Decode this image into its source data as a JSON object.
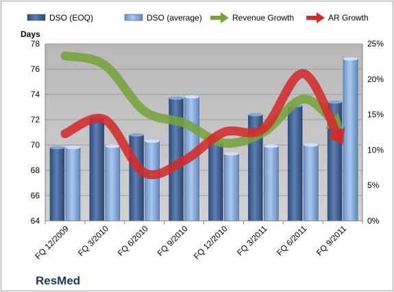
{
  "chart_data": {
    "type": "bar",
    "categories": [
      "FQ 12/2009",
      "FQ 3/2010",
      "FQ 6/2010",
      "FQ 9/2010",
      "FQ 12/2010",
      "FQ 3/2011",
      "FQ 6/2011",
      "FQ 9/2011"
    ],
    "series": [
      {
        "name": "DSO (EOQ)",
        "axis": "left",
        "kind": "bar",
        "color": "#4f6fa3",
        "values": [
          69.8,
          72.2,
          70.8,
          73.7,
          70.2,
          72.4,
          73.1,
          73.4
        ]
      },
      {
        "name": "DSO (average)",
        "axis": "left",
        "kind": "bar",
        "color": "#8fb4e3",
        "values": [
          69.8,
          69.9,
          70.3,
          73.8,
          69.3,
          69.9,
          70.0,
          76.8
        ]
      },
      {
        "name": "Revenue Growth",
        "axis": "right",
        "kind": "arrow",
        "color": "#77a33e",
        "values": [
          0.233,
          0.22,
          0.155,
          0.138,
          0.11,
          0.125,
          0.172,
          0.13
        ]
      },
      {
        "name": "AR Growth",
        "axis": "right",
        "kind": "arrow",
        "color": "#d42a2a",
        "values": [
          0.123,
          0.143,
          0.068,
          0.085,
          0.125,
          0.13,
          0.208,
          0.108
        ]
      }
    ],
    "ylabel": "Days",
    "ylim": [
      64,
      78
    ],
    "y_ticks": [
      "64",
      "66",
      "68",
      "70",
      "72",
      "74",
      "76",
      "78"
    ],
    "y2lim": [
      0,
      0.25
    ],
    "y2_ticks": [
      "0%",
      "5%",
      "10%",
      "15%",
      "20%",
      "25%"
    ],
    "legend_position": "top",
    "grid": true,
    "plot_background": "#c0c0c0"
  },
  "brand_label": "ResMed"
}
